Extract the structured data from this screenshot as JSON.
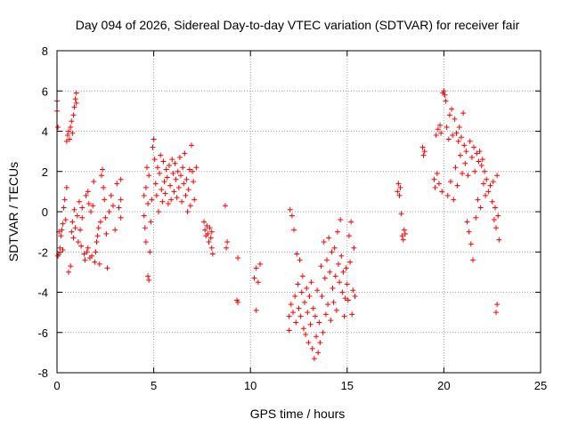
{
  "chart_data": {
    "type": "scatter",
    "title": "Day 094 of 2026, Sidereal Day-to-day VTEC variation (SDTVAR) for receiver fair",
    "xlabel": "GPS time / hours",
    "ylabel": "SDTVAR / TECUs",
    "xlim": [
      0,
      25
    ],
    "ylim": [
      -8,
      8
    ],
    "xticks": [
      0,
      5,
      10,
      15,
      20,
      25
    ],
    "yticks": [
      -8,
      -6,
      -4,
      -2,
      0,
      2,
      4,
      6,
      8
    ],
    "grid": true,
    "marker": "+",
    "marker_color": "#ff0000",
    "series": [
      {
        "name": "SDTVAR",
        "points": [
          [
            0.0,
            5.0
          ],
          [
            0.0,
            5.5
          ],
          [
            0.05,
            4.2
          ],
          [
            0.05,
            -2.2
          ],
          [
            0.1,
            -2.1
          ],
          [
            0.1,
            -1.0
          ],
          [
            0.15,
            -1.8
          ],
          [
            0.2,
            -1.2
          ],
          [
            0.25,
            -0.9
          ],
          [
            0.3,
            -1.9
          ],
          [
            0.3,
            -0.6
          ],
          [
            0.35,
            0.2
          ],
          [
            0.4,
            0.6
          ],
          [
            0.45,
            -0.4
          ],
          [
            0.5,
            1.2
          ],
          [
            0.5,
            3.5
          ],
          [
            0.55,
            3.8
          ],
          [
            0.6,
            4.0
          ],
          [
            0.6,
            -3.0
          ],
          [
            0.65,
            3.6
          ],
          [
            0.7,
            4.2
          ],
          [
            0.7,
            -2.7
          ],
          [
            0.75,
            4.5
          ],
          [
            0.75,
            -1.0
          ],
          [
            0.8,
            3.9
          ],
          [
            0.8,
            -0.5
          ],
          [
            0.85,
            4.8
          ],
          [
            0.85,
            -1.3
          ],
          [
            0.9,
            5.2
          ],
          [
            0.9,
            0.1
          ],
          [
            0.95,
            5.6
          ],
          [
            0.95,
            -0.8
          ],
          [
            1.0,
            5.9
          ],
          [
            1.0,
            5.4
          ],
          [
            1.05,
            -0.2
          ],
          [
            1.1,
            -1.5
          ],
          [
            1.15,
            0.5
          ],
          [
            1.2,
            -0.9
          ],
          [
            1.25,
            -1.7
          ],
          [
            1.3,
            0.2
          ],
          [
            1.3,
            -0.3
          ],
          [
            1.4,
            -2.1
          ],
          [
            1.45,
            -2.4
          ],
          [
            1.5,
            0.8
          ],
          [
            1.55,
            -2.0
          ],
          [
            1.6,
            1.0
          ],
          [
            1.6,
            -1.8
          ],
          [
            1.65,
            0.4
          ],
          [
            1.7,
            -2.3
          ],
          [
            1.75,
            0.0
          ],
          [
            1.8,
            -2.2
          ],
          [
            1.85,
            0.3
          ],
          [
            1.9,
            1.5
          ],
          [
            1.95,
            -2.5
          ],
          [
            2.0,
            -2.0
          ],
          [
            2.05,
            -1.5
          ],
          [
            2.1,
            -1.2
          ],
          [
            2.15,
            -0.8
          ],
          [
            2.2,
            -2.6
          ],
          [
            2.25,
            -0.5
          ],
          [
            2.3,
            1.8
          ],
          [
            2.35,
            2.1
          ],
          [
            2.4,
            1.2
          ],
          [
            2.45,
            0.6
          ],
          [
            2.5,
            -0.3
          ],
          [
            2.55,
            -1.1
          ],
          [
            2.6,
            -2.8
          ],
          [
            2.7,
            0.0
          ],
          [
            2.8,
            0.8
          ],
          [
            2.9,
            0.3
          ],
          [
            3.0,
            -0.9
          ],
          [
            3.1,
            1.4
          ],
          [
            3.2,
            0.2
          ],
          [
            3.3,
            0.6
          ],
          [
            3.3,
            1.6
          ],
          [
            3.3,
            -0.3
          ],
          [
            4.5,
            -0.2
          ],
          [
            4.5,
            0.8
          ],
          [
            4.55,
            -0.8
          ],
          [
            4.6,
            -1.5
          ],
          [
            4.6,
            1.2
          ],
          [
            4.65,
            2.2
          ],
          [
            4.7,
            -3.2
          ],
          [
            4.7,
            0.4
          ],
          [
            4.75,
            -3.4
          ],
          [
            4.75,
            1.8
          ],
          [
            4.8,
            -2.0
          ],
          [
            4.85,
            -0.5
          ],
          [
            4.9,
            0.6
          ],
          [
            4.95,
            3.2
          ],
          [
            5.0,
            3.6
          ],
          [
            5.05,
            2.6
          ],
          [
            5.1,
            1.4
          ],
          [
            5.15,
            0.8
          ],
          [
            5.2,
            2.2
          ],
          [
            5.25,
            0.0
          ],
          [
            5.3,
            1.9
          ],
          [
            5.35,
            2.8
          ],
          [
            5.4,
            1.1
          ],
          [
            5.45,
            0.5
          ],
          [
            5.5,
            2.5
          ],
          [
            5.55,
            1.5
          ],
          [
            5.6,
            0.9
          ],
          [
            5.65,
            2.1
          ],
          [
            5.7,
            1.7
          ],
          [
            5.75,
            0.4
          ],
          [
            5.8,
            2.3
          ],
          [
            5.85,
            1.3
          ],
          [
            5.9,
            0.6
          ],
          [
            5.95,
            2.6
          ],
          [
            6.0,
            1.9
          ],
          [
            6.05,
            1.0
          ],
          [
            6.1,
            2.4
          ],
          [
            6.15,
            1.6
          ],
          [
            6.2,
            0.7
          ],
          [
            6.25,
            2.0
          ],
          [
            6.3,
            1.2
          ],
          [
            6.35,
            2.7
          ],
          [
            6.4,
            1.8
          ],
          [
            6.45,
            0.5
          ],
          [
            6.5,
            2.2
          ],
          [
            6.55,
            1.4
          ],
          [
            6.6,
            2.9
          ],
          [
            6.65,
            0.8
          ],
          [
            6.7,
            1.6
          ],
          [
            6.75,
            0.0
          ],
          [
            6.8,
            1.1
          ],
          [
            6.85,
            2.1
          ],
          [
            6.9,
            0.3
          ],
          [
            6.95,
            3.3
          ],
          [
            7.0,
            2.0
          ],
          [
            7.05,
            1.5
          ],
          [
            7.1,
            0.6
          ],
          [
            7.2,
            2.2
          ],
          [
            7.6,
            -0.5
          ],
          [
            7.65,
            -0.9
          ],
          [
            7.7,
            -1.2
          ],
          [
            7.75,
            -0.7
          ],
          [
            7.8,
            -1.1
          ],
          [
            7.85,
            -1.5
          ],
          [
            7.9,
            -0.8
          ],
          [
            7.95,
            -1.3
          ],
          [
            8.0,
            -1.8
          ],
          [
            8.05,
            -2.1
          ],
          [
            8.0,
            -1.0
          ],
          [
            8.7,
            0.3
          ],
          [
            8.75,
            -1.8
          ],
          [
            8.8,
            -1.5
          ],
          [
            9.3,
            -4.4
          ],
          [
            9.35,
            -4.5
          ],
          [
            9.35,
            -2.3
          ],
          [
            10.2,
            -3.3
          ],
          [
            10.3,
            -2.8
          ],
          [
            10.3,
            -4.9
          ],
          [
            10.4,
            -3.5
          ],
          [
            10.5,
            -2.6
          ],
          [
            12.0,
            -5.9
          ],
          [
            12.0,
            -5.2
          ],
          [
            12.05,
            0.1
          ],
          [
            12.1,
            -4.6
          ],
          [
            12.15,
            -0.2
          ],
          [
            12.2,
            -5.0
          ],
          [
            12.25,
            -0.9
          ],
          [
            12.3,
            -4.2
          ],
          [
            12.35,
            -5.5
          ],
          [
            12.4,
            -2.1
          ],
          [
            12.45,
            -3.6
          ],
          [
            12.5,
            -4.8
          ],
          [
            12.55,
            -2.4
          ],
          [
            12.6,
            -5.2
          ],
          [
            12.65,
            -4.0
          ],
          [
            12.7,
            -3.2
          ],
          [
            12.75,
            -5.8
          ],
          [
            12.8,
            -4.5
          ],
          [
            12.85,
            -6.1
          ],
          [
            12.9,
            -3.8
          ],
          [
            12.95,
            -5.0
          ],
          [
            13.0,
            -6.5
          ],
          [
            13.05,
            -4.2
          ],
          [
            13.1,
            -5.6
          ],
          [
            13.15,
            -3.5
          ],
          [
            13.2,
            -6.8
          ],
          [
            13.25,
            -4.8
          ],
          [
            13.3,
            -7.3
          ],
          [
            13.35,
            -5.2
          ],
          [
            13.4,
            -6.2
          ],
          [
            13.45,
            -3.9
          ],
          [
            13.5,
            -7.0
          ],
          [
            13.55,
            -5.5
          ],
          [
            13.6,
            -6.5
          ],
          [
            13.65,
            -2.7
          ],
          [
            13.7,
            -4.2
          ],
          [
            13.75,
            -6.0
          ],
          [
            13.8,
            -1.5
          ],
          [
            13.85,
            -3.3
          ],
          [
            13.9,
            -5.1
          ],
          [
            13.95,
            -2.4
          ],
          [
            14.0,
            -4.6
          ],
          [
            14.05,
            -1.3
          ],
          [
            14.1,
            -3.0
          ],
          [
            14.15,
            -5.4
          ],
          [
            14.2,
            -2.0
          ],
          [
            14.25,
            -3.8
          ],
          [
            14.3,
            -4.5
          ],
          [
            14.35,
            -1.8
          ],
          [
            14.4,
            -3.2
          ],
          [
            14.45,
            -4.9
          ],
          [
            14.5,
            -1.0
          ],
          [
            14.55,
            -2.6
          ],
          [
            14.6,
            -3.5
          ],
          [
            14.65,
            -0.4
          ],
          [
            14.7,
            -2.2
          ],
          [
            14.75,
            -4.0
          ],
          [
            14.8,
            -3.0
          ],
          [
            14.85,
            -5.2
          ],
          [
            14.9,
            -4.3
          ],
          [
            14.95,
            -2.8
          ],
          [
            15.0,
            -3.6
          ],
          [
            15.05,
            -4.4
          ],
          [
            15.1,
            -1.2
          ],
          [
            15.15,
            -2.5
          ],
          [
            15.2,
            -0.5
          ],
          [
            15.25,
            -5.1
          ],
          [
            15.3,
            -3.9
          ],
          [
            15.35,
            -1.8
          ],
          [
            15.4,
            -4.2
          ],
          [
            17.6,
            1.0
          ],
          [
            17.65,
            1.4
          ],
          [
            17.7,
            0.8
          ],
          [
            17.75,
            1.2
          ],
          [
            17.8,
            -0.1
          ],
          [
            17.85,
            -1.2
          ],
          [
            17.9,
            -1.4
          ],
          [
            17.95,
            -0.9
          ],
          [
            18.0,
            -1.1
          ],
          [
            18.9,
            3.2
          ],
          [
            18.95,
            2.8
          ],
          [
            19.0,
            3.0
          ],
          [
            19.5,
            1.6
          ],
          [
            19.55,
            1.2
          ],
          [
            19.6,
            3.8
          ],
          [
            19.65,
            1.9
          ],
          [
            19.7,
            4.1
          ],
          [
            19.75,
            1.4
          ],
          [
            19.8,
            4.3
          ],
          [
            19.85,
            3.9
          ],
          [
            19.9,
            1.0
          ],
          [
            19.95,
            5.9
          ],
          [
            20.0,
            6.0
          ],
          [
            20.05,
            5.8
          ],
          [
            20.1,
            5.5
          ],
          [
            20.15,
            4.2
          ],
          [
            20.2,
            0.8
          ],
          [
            20.25,
            3.6
          ],
          [
            20.3,
            4.8
          ],
          [
            20.35,
            1.5
          ],
          [
            20.4,
            5.1
          ],
          [
            20.45,
            3.8
          ],
          [
            20.5,
            0.6
          ],
          [
            20.55,
            4.6
          ],
          [
            20.6,
            2.2
          ],
          [
            20.65,
            3.9
          ],
          [
            20.7,
            1.3
          ],
          [
            20.75,
            3.5
          ],
          [
            20.8,
            4.2
          ],
          [
            20.85,
            2.8
          ],
          [
            20.9,
            3.7
          ],
          [
            20.95,
            1.9
          ],
          [
            21.0,
            4.9
          ],
          [
            21.05,
            3.3
          ],
          [
            21.1,
            2.4
          ],
          [
            21.15,
            3.0
          ],
          [
            21.2,
            -0.5
          ],
          [
            21.25,
            1.8
          ],
          [
            21.3,
            -1.0
          ],
          [
            21.35,
            3.5
          ],
          [
            21.4,
            -1.6
          ],
          [
            21.45,
            2.7
          ],
          [
            21.5,
            -2.4
          ],
          [
            21.55,
            3.2
          ],
          [
            21.6,
            2.0
          ],
          [
            21.65,
            -0.3
          ],
          [
            21.7,
            2.9
          ],
          [
            21.75,
            0.6
          ],
          [
            21.8,
            2.5
          ],
          [
            21.85,
            3.0
          ],
          [
            21.9,
            0.2
          ],
          [
            21.95,
            2.3
          ],
          [
            22.0,
            2.6
          ],
          [
            22.05,
            1.4
          ],
          [
            22.1,
            2.0
          ],
          [
            22.15,
            0.8
          ],
          [
            22.2,
            1.6
          ],
          [
            22.3,
            1.0
          ],
          [
            22.4,
            1.3
          ],
          [
            22.5,
            0.5
          ],
          [
            22.55,
            1.5
          ],
          [
            22.6,
            -0.4
          ],
          [
            22.65,
            0.2
          ],
          [
            22.7,
            -0.8
          ],
          [
            22.7,
            -5.0
          ],
          [
            22.75,
            1.8
          ],
          [
            22.75,
            -4.6
          ],
          [
            22.8,
            -0.2
          ],
          [
            22.85,
            -1.4
          ]
        ]
      }
    ]
  }
}
